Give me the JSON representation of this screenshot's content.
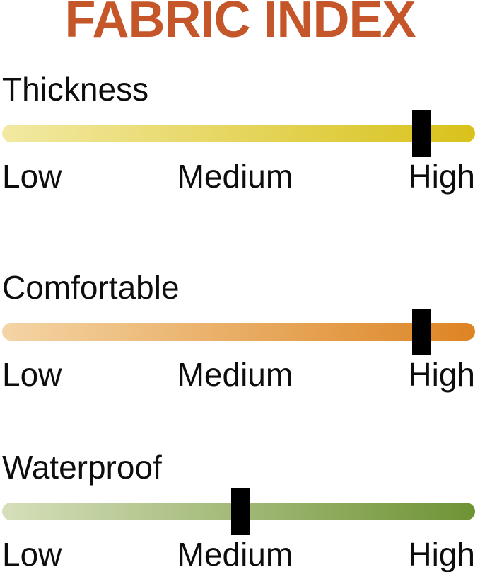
{
  "title": {
    "text": "FABRIC INDEX",
    "color": "#C5562A"
  },
  "sliders": [
    {
      "id": "thickness",
      "label": "Thickness",
      "level": "High",
      "position_percent": 88.6,
      "gradient_start": "#F2E9A3",
      "gradient_end": "#D9C21A",
      "scale": [
        "Low",
        "Medium",
        "High"
      ]
    },
    {
      "id": "comfortable",
      "label": "Comfortable",
      "level": "High",
      "position_percent": 88.6,
      "gradient_start": "#F4D5A5",
      "gradient_end": "#DD8423",
      "scale": [
        "Low",
        "Medium",
        "High"
      ]
    },
    {
      "id": "waterproof",
      "label": "Waterproof",
      "level": "Medium",
      "position_percent": 50.3,
      "gradient_start": "#D6DFBB",
      "gradient_end": "#6E9334",
      "scale": [
        "Low",
        "Medium",
        "High"
      ]
    }
  ],
  "chart_data": {
    "type": "bar",
    "variant": "slider-index-infographic",
    "title": "FABRIC INDEX",
    "categories": [
      "Thickness",
      "Comfortable",
      "Waterproof"
    ],
    "values": [
      0.89,
      0.89,
      0.5
    ],
    "value_labels": [
      "High",
      "High",
      "Medium"
    ],
    "scale_ticks": [
      "Low",
      "Medium",
      "High"
    ],
    "xlim": [
      0,
      1
    ],
    "bar_colors": [
      [
        "#F2E9A3",
        "#D9C21A"
      ],
      [
        "#F4D5A5",
        "#DD8423"
      ],
      [
        "#D6DFBB",
        "#6E9334"
      ]
    ],
    "marker_color": "#000000",
    "title_color": "#C5562A",
    "legend": false,
    "grid": false
  }
}
